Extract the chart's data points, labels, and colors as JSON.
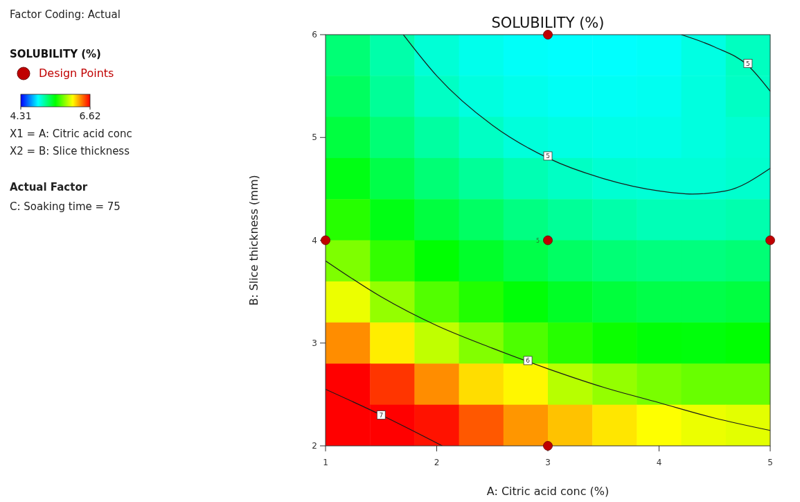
{
  "chart_data": {
    "type": "heatmap",
    "title": "SOLUBILITY (%)",
    "xlabel": "A: Citric acid conc (%)",
    "ylabel": "B: Slice thickness (mm)",
    "legend_title": "SOLUBILITY (%)",
    "legend": "left",
    "xlim": [
      1,
      5
    ],
    "ylim": [
      2,
      6
    ],
    "xticks": [
      1,
      2,
      3,
      4,
      5
    ],
    "yticks": [
      2,
      3,
      4,
      5,
      6
    ],
    "grid": false,
    "clim": [
      4.31,
      6.62
    ],
    "cticks": [
      4.31,
      6.62
    ],
    "cells": [
      [
        5.2,
        5.08,
        4.98,
        4.93,
        4.9,
        4.89,
        4.89,
        4.9,
        4.95,
        5.03
      ],
      [
        5.25,
        5.12,
        5.02,
        4.96,
        4.93,
        4.91,
        4.91,
        4.92,
        4.96,
        5.02
      ],
      [
        5.32,
        5.2,
        5.1,
        5.02,
        4.97,
        4.95,
        4.94,
        4.94,
        4.96,
        4.99
      ],
      [
        5.42,
        5.3,
        5.2,
        5.12,
        5.06,
        5.02,
        4.99,
        4.98,
        4.98,
        5.0
      ],
      [
        5.55,
        5.42,
        5.32,
        5.24,
        5.17,
        5.12,
        5.08,
        5.05,
        5.05,
        5.07
      ],
      [
        5.75,
        5.58,
        5.46,
        5.37,
        5.3,
        5.24,
        5.2,
        5.18,
        5.18,
        5.2
      ],
      [
        6.0,
        5.8,
        5.65,
        5.54,
        5.45,
        5.38,
        5.33,
        5.3,
        5.3,
        5.32
      ],
      [
        6.3,
        6.08,
        5.9,
        5.76,
        5.64,
        5.55,
        5.49,
        5.45,
        5.44,
        5.46
      ],
      [
        6.62,
        6.5,
        6.3,
        6.12,
        6.06,
        5.88,
        5.8,
        5.74,
        5.7,
        5.7
      ],
      [
        6.62,
        6.62,
        6.58,
        6.42,
        6.28,
        6.18,
        6.1,
        6.04,
        6.0,
        5.98
      ]
    ],
    "series": [
      {
        "type": "line",
        "color": "#1a1a1a",
        "x": [
          1,
          1.5,
          2.05
        ],
        "values": [
          2.55,
          2.3,
          2.0
        ]
      },
      {
        "type": "line",
        "color": "#1a1a1a",
        "x": [
          1,
          1.5,
          2,
          2.5,
          3,
          3.5,
          4,
          4.5,
          5
        ],
        "values": [
          3.8,
          3.45,
          3.17,
          2.95,
          2.75,
          2.57,
          2.42,
          2.27,
          2.15
        ]
      },
      {
        "type": "line",
        "color": "#1a1a1a",
        "x": [
          1.7,
          2,
          2.5,
          3,
          3.5,
          4,
          4.3,
          4.6,
          5
        ],
        "values": [
          6,
          5.6,
          5.12,
          4.8,
          4.6,
          4.48,
          4.45,
          4.48,
          4.7
        ]
      },
      {
        "type": "line",
        "color": "#1a1a1a",
        "x": [
          4.2,
          4.5,
          4.8,
          5
        ],
        "values": [
          6,
          5.88,
          5.7,
          5.45
        ]
      },
      {
        "type": "scatter",
        "name": "Design Points",
        "color": "#c00000",
        "x": [
          1,
          3,
          3,
          3,
          5
        ],
        "values": [
          4,
          6,
          4,
          2,
          4
        ]
      }
    ],
    "annotations": [
      "Factor Coding: Actual",
      "X1 = A: Citric acid conc",
      "X2 = B: Slice thickness",
      "Actual Factor",
      "C: Soaking time = 75",
      {
        "text": "7",
        "x": 1.5,
        "y": 2.3
      },
      {
        "text": "6",
        "x": 2.82,
        "y": 2.83
      },
      {
        "text": "5",
        "x": 3,
        "y": 4.82
      },
      {
        "text": "5",
        "x": 4.8,
        "y": 5.72
      },
      {
        "text": "5",
        "x": 3,
        "y": 4
      }
    ]
  }
}
